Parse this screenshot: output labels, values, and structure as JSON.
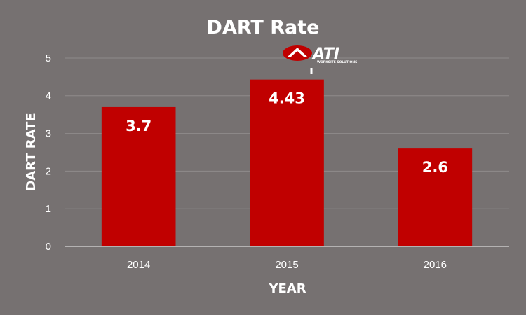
{
  "chart_data": {
    "type": "bar",
    "title": "DART Rate",
    "xlabel": "YEAR",
    "ylabel": "DART RATE",
    "categories": [
      "2014",
      "2015",
      "2016"
    ],
    "values": [
      3.7,
      4.43,
      2.6
    ],
    "data_labels": [
      "3.7",
      "4.43",
      "2.6"
    ],
    "ylim": [
      0,
      5
    ],
    "yticks": [
      "0",
      "1",
      "2",
      "3",
      "4",
      "5"
    ],
    "grid": true,
    "legend": "none",
    "bar_color": "#c00000"
  },
  "logo": {
    "text": "ATI",
    "subtext": "WORKSITE SOLUTIONS",
    "accent_color": "#c00000"
  }
}
